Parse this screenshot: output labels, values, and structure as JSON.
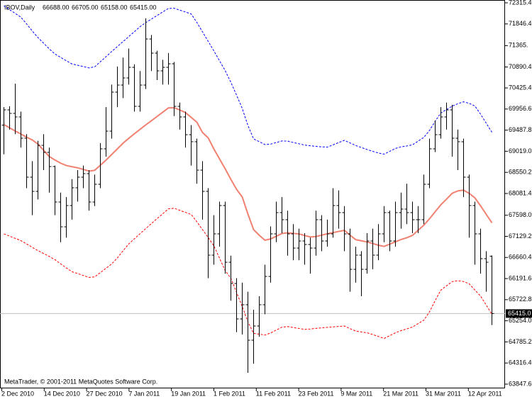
{
  "chart_data": {
    "type": "ohlc",
    "header": {
      "symbol": "IBOV,Daily",
      "values": [
        "66688.00",
        "66705.00",
        "65158.00",
        "65415.00"
      ]
    },
    "copyright": "MetaTrader, © 2001-2011 MetaQuotes Software Corp.",
    "bar_color": "#000000",
    "open": [
      69600,
      69938,
      69860,
      69781,
      69309,
      68443,
      68128,
      69151,
      68994,
      68679,
      67892,
      67341,
      67813,
      68207,
      68443,
      68522,
      67892,
      68286,
      69073,
      69466,
      70332,
      70489,
      70647,
      70883,
      70017,
      70489,
      71512,
      71198,
      70804,
      70883,
      70961,
      70017,
      69781,
      69387,
      69230,
      68600,
      68128,
      66712,
      67184,
      67813,
      66554,
      66082,
      65295,
      65610,
      64823,
      65138,
      65610,
      66239,
      67184,
      67656,
      67499,
      67184,
      66869,
      67026,
      66948,
      66869,
      67499,
      67026,
      67184,
      67813,
      67656,
      67184,
      66397,
      66712,
      66397,
      67026,
      66712,
      67184,
      67656,
      67026,
      67656,
      67735,
      67656,
      67499,
      67499,
      68286,
      69073,
      69387,
      69781,
      69938,
      69309,
      69230,
      68443,
      67813,
      67184,
      66633,
      66688
    ],
    "high": [
      70000,
      70020,
      70520,
      69900,
      69400,
      68800,
      69250,
      69400,
      69100,
      68700,
      68100,
      68000,
      68400,
      68600,
      68700,
      68600,
      68500,
      69200,
      70000,
      70500,
      70900,
      71100,
      71300,
      70950,
      70800,
      71970,
      71600,
      71250,
      71050,
      71200,
      71000,
      70100,
      69900,
      69600,
      69300,
      68800,
      68200,
      67600,
      67900,
      67900,
      66700,
      66200,
      66100,
      65900,
      65500,
      65800,
      66500,
      67350,
      67900,
      68000,
      67700,
      67400,
      67300,
      67200,
      67100,
      67700,
      67600,
      67500,
      68200,
      68150,
      67800,
      67300,
      66900,
      66800,
      67200,
      67300,
      67400,
      67800,
      67700,
      67900,
      68100,
      68300,
      67900,
      67800,
      68500,
      69300,
      69700,
      70000,
      70100,
      70050,
      69500,
      69300,
      68500,
      67900,
      67300,
      66800,
      66705
    ],
    "low": [
      68950,
      69500,
      69400,
      69100,
      68200,
      67600,
      67950,
      68600,
      68100,
      67600,
      67000,
      67100,
      67500,
      67900,
      68200,
      67700,
      67800,
      68200,
      68900,
      69300,
      70000,
      70200,
      70500,
      69900,
      69900,
      70400,
      70800,
      70600,
      70500,
      70500,
      69800,
      69500,
      69100,
      68700,
      68300,
      67500,
      66200,
      66500,
      66900,
      66300,
      65700,
      65000,
      64950,
      64100,
      64300,
      64900,
      65400,
      66100,
      67000,
      67200,
      66700,
      66600,
      66600,
      66500,
      66300,
      66700,
      66800,
      66900,
      67100,
      67300,
      66800,
      65900,
      66100,
      65800,
      66300,
      66400,
      66600,
      67000,
      66800,
      66900,
      67300,
      67400,
      67200,
      67200,
      67400,
      68200,
      69000,
      69300,
      69500,
      68900,
      68600,
      68000,
      67100,
      66500,
      66300,
      65900,
      65158
    ],
    "close": [
      69938,
      69860,
      69781,
      69309,
      68443,
      68128,
      69151,
      68994,
      68679,
      67892,
      67341,
      67813,
      68207,
      68443,
      68522,
      67892,
      68286,
      69073,
      69466,
      70332,
      70489,
      70647,
      70883,
      70017,
      70489,
      71512,
      71198,
      70804,
      70883,
      70961,
      70017,
      69781,
      69387,
      69230,
      68600,
      68128,
      66712,
      67184,
      67813,
      66554,
      66082,
      65295,
      65610,
      64823,
      65138,
      65610,
      66239,
      67184,
      67656,
      67499,
      67184,
      66869,
      67026,
      66948,
      66869,
      67499,
      67026,
      67184,
      67813,
      67656,
      67184,
      66397,
      66712,
      66397,
      67026,
      66712,
      67184,
      67656,
      67026,
      67656,
      67735,
      67656,
      67499,
      67499,
      68286,
      69073,
      69387,
      69781,
      69938,
      69309,
      69230,
      68443,
      67813,
      67184,
      66633,
      66554,
      65415
    ],
    "overlays": [
      {
        "color": "#0000ff",
        "dashed": true,
        "width": 1,
        "values": [
          72248,
          72164,
          72080,
          71996,
          71847,
          71689,
          71544,
          71418,
          71292,
          71179,
          71104,
          71028,
          70958,
          70929,
          70900,
          70870,
          70894,
          71007,
          71120,
          71234,
          71345,
          71455,
          71565,
          71675,
          71786,
          71876,
          71955,
          72034,
          72113,
          72191,
          72195,
          72153,
          72111,
          72069,
          71880,
          71670,
          71460,
          71248,
          71028,
          70808,
          70548,
          70265,
          69970,
          69592,
          69293,
          69231,
          69168,
          69178,
          69213,
          69248,
          69244,
          69214,
          69185,
          69156,
          69141,
          69128,
          69116,
          69111,
          69161,
          69212,
          69262,
          69203,
          69147,
          69102,
          69058,
          69017,
          68980,
          68955,
          69018,
          69082,
          69117,
          69136,
          69162,
          69244,
          69326,
          69482,
          69684,
          69869,
          69945,
          70021,
          70075,
          70117,
          70083,
          70024,
          69842,
          69641,
          69440
        ]
      },
      {
        "color": "#f08070",
        "dashed": false,
        "width": 2,
        "values": [
          69611,
          69540,
          69468,
          69401,
          69333,
          69270,
          69178,
          69040,
          68901,
          68824,
          68754,
          68702,
          68676,
          68651,
          68615,
          68577,
          68596,
          68709,
          68823,
          68947,
          69073,
          69198,
          69306,
          69407,
          69507,
          69604,
          69698,
          69793,
          69887,
          69982,
          69986,
          69935,
          69878,
          69771,
          69664,
          69435,
          69317,
          69069,
          68848,
          68628,
          68394,
          68174,
          68003,
          67625,
          67279,
          67153,
          67043,
          67072,
          67132,
          67193,
          67208,
          67195,
          67182,
          67148,
          67116,
          67125,
          67156,
          67187,
          67212,
          67238,
          67263,
          67154,
          67055,
          67030,
          67004,
          66971,
          66932,
          66906,
          66957,
          67008,
          67060,
          67098,
          67151,
          67264,
          67378,
          67519,
          67676,
          67830,
          67956,
          68085,
          68139,
          68156,
          68084,
          67984,
          67806,
          67617,
          67429
        ]
      },
      {
        "color": "#ff0000",
        "dashed": true,
        "width": 1,
        "values": [
          67185,
          67134,
          67084,
          67033,
          66961,
          66885,
          66813,
          66748,
          66683,
          66610,
          66519,
          66428,
          66344,
          66302,
          66260,
          66218,
          66228,
          66325,
          66421,
          66517,
          66652,
          66809,
          66961,
          67075,
          67189,
          67302,
          67414,
          67523,
          67632,
          67741,
          67753,
          67707,
          67661,
          67615,
          67455,
          67278,
          67102,
          66919,
          66644,
          66368,
          66200,
          65885,
          65568,
          65232,
          64975,
          64957,
          64938,
          64983,
          65049,
          65113,
          65126,
          65105,
          65083,
          65063,
          65072,
          65085,
          65097,
          65108,
          65118,
          65128,
          65138,
          65079,
          65026,
          65006,
          64987,
          64949,
          64905,
          64862,
          64925,
          64988,
          65036,
          65074,
          65116,
          65192,
          65267,
          65452,
          65704,
          65936,
          66030,
          66125,
          66144,
          66126,
          66075,
          65937,
          65802,
          65602,
          65397
        ]
      }
    ],
    "current_price": {
      "value": 65415,
      "label": "65415.0"
    },
    "ylim": [
      63753,
      72378
    ],
    "yticks": [
      72315.4,
      71846.4,
      {
        "value": 71365,
        "label": "71365."
      },
      70890.4,
      70425.4,
      69956.6,
      69487.8,
      {
        "value": 69019.0,
        "label": "69019.0"
      },
      68550.2,
      68081.4,
      {
        "value": 67598.0,
        "label": "67598.0"
      },
      67129.2,
      66660.4,
      66191.6,
      65722.8,
      {
        "value": 65254.0,
        "label": "65254.0"
      },
      64785.2,
      64316.4,
      63847.6
    ],
    "xticks": [
      "2 Dec 2010",
      "14 Dec 2010",
      "27 Dec 2010",
      "7 Jan 2011",
      "19 Jan 2011",
      "1 Feb 2011",
      "11 Feb 2011",
      "23 Feb 2011",
      "9 Mar 2011",
      "21 Mar 2011",
      "31 Mar 2011",
      "12 Apr 2011"
    ],
    "grid": false
  }
}
